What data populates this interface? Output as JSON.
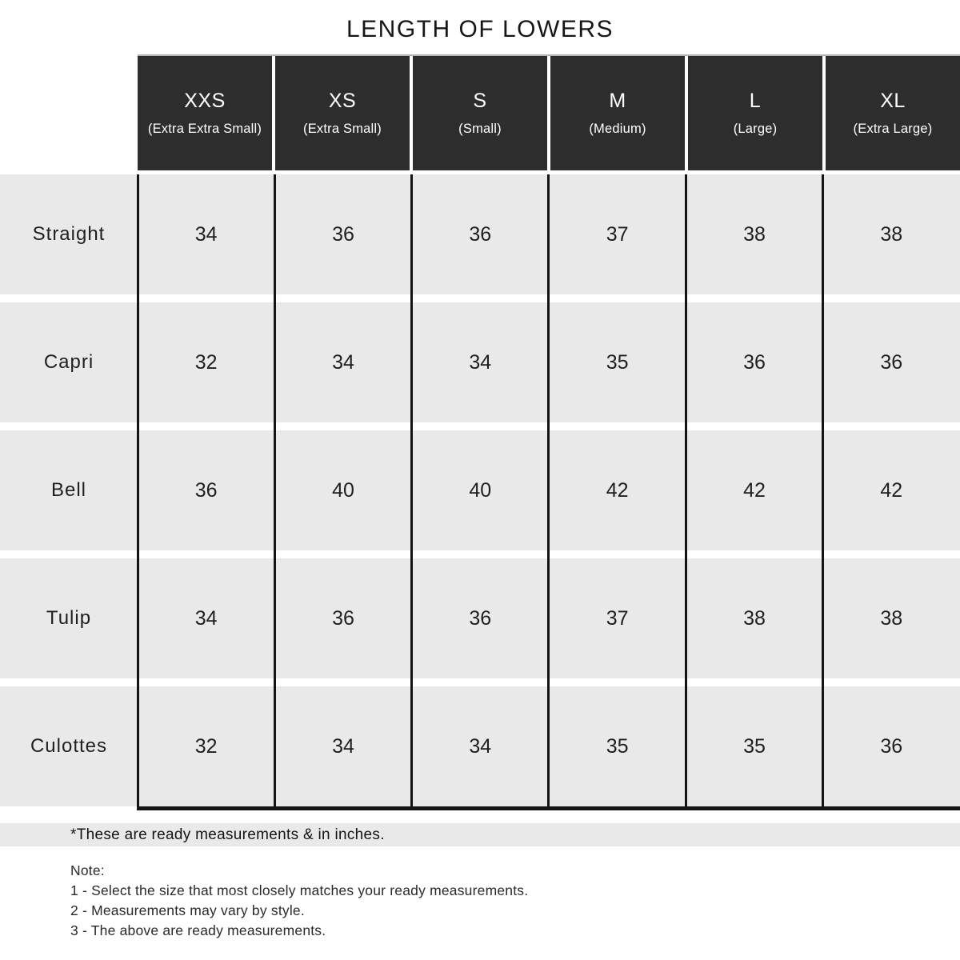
{
  "title": "LENGTH OF LOWERS",
  "size_chart": {
    "columns": [
      {
        "code": "XXS",
        "label": "(Extra Extra Small)"
      },
      {
        "code": "XS",
        "label": "(Extra Small)"
      },
      {
        "code": "S",
        "label": "(Small)"
      },
      {
        "code": "M",
        "label": "(Medium)"
      },
      {
        "code": "L",
        "label": "(Large)"
      },
      {
        "code": "XL",
        "label": "(Extra Large)"
      }
    ],
    "rows": [
      {
        "style": "Straight",
        "values": [
          "34",
          "36",
          "36",
          "37",
          "38",
          "38"
        ]
      },
      {
        "style": "Capri",
        "values": [
          "32",
          "34",
          "34",
          "35",
          "36",
          "36"
        ]
      },
      {
        "style": "Bell",
        "values": [
          "36",
          "40",
          "40",
          "42",
          "42",
          "42"
        ]
      },
      {
        "style": "Tulip",
        "values": [
          "34",
          "36",
          "36",
          "37",
          "38",
          "38"
        ]
      },
      {
        "style": "Culottes",
        "values": [
          "32",
          "34",
          "34",
          "35",
          "35",
          "36"
        ]
      }
    ],
    "unit": "inches"
  },
  "footnote": "*These are ready measurements & in inches.",
  "notes": {
    "heading": "Note:",
    "items": [
      "1 - Select the size that most closely matches your ready measurements.",
      "2 - Measurements may vary by style.",
      "3 - The above are ready measurements."
    ]
  },
  "colors": {
    "header_bg": "#2d2d2d",
    "header_text": "#ffffff",
    "row_bg": "#e9e9e9",
    "grid_line": "#141414",
    "text": "#1a1a1a"
  }
}
